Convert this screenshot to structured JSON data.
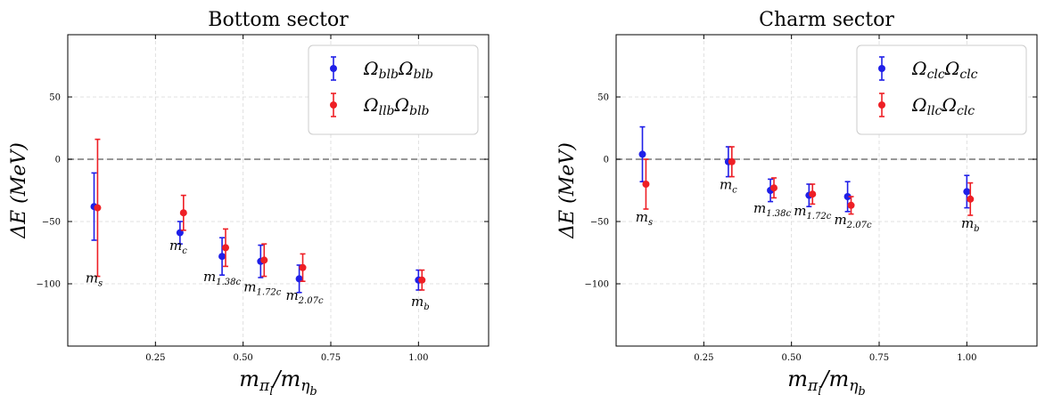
{
  "chart_data": [
    {
      "type": "scatter",
      "title": "Bottom sector",
      "xlabel": "m_{π_l}/m_{η_b}",
      "ylabel": "ΔE (MeV)",
      "xlim": [
        0.0,
        1.2
      ],
      "ylim": [
        -150,
        100
      ],
      "xticks": [
        0.25,
        0.5,
        0.75,
        1.0
      ],
      "xtick_labels": [
        "0.25",
        "0.50",
        "0.75",
        "1.00"
      ],
      "yticks": [
        -100,
        -50,
        0,
        50
      ],
      "ytick_labels": [
        "−100",
        "−50",
        "0",
        "50"
      ],
      "grid": true,
      "legend_position": "top-right",
      "reference_line": 0,
      "series": [
        {
          "name": "Ω_{blb}Ω_{blb}",
          "color": "#1f1fe8",
          "x": [
            0.075,
            0.32,
            0.44,
            0.55,
            0.66,
            1.0
          ],
          "y": [
            -38,
            -59,
            -78,
            -82,
            -96,
            -97
          ],
          "err_low": [
            27,
            9,
            15,
            13,
            11,
            8
          ],
          "err_high": [
            27,
            9,
            15,
            13,
            11,
            8
          ]
        },
        {
          "name": "Ω_{llb}Ω_{blb}",
          "color": "#ee1f25",
          "x": [
            0.085,
            0.33,
            0.45,
            0.56,
            0.67,
            1.01
          ],
          "y": [
            -39,
            -43,
            -71,
            -81,
            -87,
            -97
          ],
          "err_low": [
            55,
            14,
            15,
            13,
            11,
            8
          ],
          "err_high": [
            55,
            14,
            15,
            13,
            11,
            8
          ]
        }
      ],
      "point_labels": [
        {
          "base": "m",
          "sub": "s",
          "x": 0.075,
          "y": -99
        },
        {
          "base": "m",
          "sub": "c",
          "x": 0.315,
          "y": -73
        },
        {
          "base": "m",
          "sub": "1.38c",
          "x": 0.44,
          "y": -98
        },
        {
          "base": "m",
          "sub": "1.72c",
          "x": 0.555,
          "y": -106
        },
        {
          "base": "m",
          "sub": "2.07c",
          "x": 0.675,
          "y": -113
        },
        {
          "base": "m",
          "sub": "b",
          "x": 1.005,
          "y": -118
        }
      ]
    },
    {
      "type": "scatter",
      "title": "Charm sector",
      "xlabel": "m_{π_l}/m_{η_b}",
      "ylabel": "ΔE (MeV)",
      "xlim": [
        0.0,
        1.2
      ],
      "ylim": [
        -150,
        100
      ],
      "xticks": [
        0.25,
        0.5,
        0.75,
        1.0
      ],
      "xtick_labels": [
        "0.25",
        "0.50",
        "0.75",
        "1.00"
      ],
      "yticks": [
        -100,
        -50,
        0,
        50
      ],
      "ytick_labels": [
        "−100",
        "−50",
        "0",
        "50"
      ],
      "grid": true,
      "legend_position": "top-right",
      "reference_line": 0,
      "series": [
        {
          "name": "Ω_{clc}Ω_{clc}",
          "color": "#1f1fe8",
          "x": [
            0.075,
            0.32,
            0.44,
            0.55,
            0.66,
            1.0
          ],
          "y": [
            4,
            -2,
            -25,
            -29,
            -30,
            -26
          ],
          "err_low": [
            22,
            12,
            9,
            9,
            12,
            13
          ],
          "err_high": [
            22,
            12,
            9,
            9,
            12,
            13
          ]
        },
        {
          "name": "Ω_{llc}Ω_{clc}",
          "color": "#ee1f25",
          "x": [
            0.085,
            0.33,
            0.45,
            0.56,
            0.67,
            1.01
          ],
          "y": [
            -20,
            -2,
            -23,
            -28,
            -37,
            -32
          ],
          "err_low": [
            20,
            12,
            8,
            8,
            7,
            13
          ],
          "err_high": [
            20,
            12,
            8,
            8,
            7,
            13
          ]
        }
      ],
      "point_labels": [
        {
          "base": "m",
          "sub": "s",
          "x": 0.08,
          "y": -50
        },
        {
          "base": "m",
          "sub": "c",
          "x": 0.32,
          "y": -24
        },
        {
          "base": "m",
          "sub": "1.38c",
          "x": 0.445,
          "y": -43
        },
        {
          "base": "m",
          "sub": "1.72c",
          "x": 0.56,
          "y": -45
        },
        {
          "base": "m",
          "sub": "2.07c",
          "x": 0.675,
          "y": -52
        },
        {
          "base": "m",
          "sub": "b",
          "x": 1.01,
          "y": -55
        }
      ]
    }
  ]
}
